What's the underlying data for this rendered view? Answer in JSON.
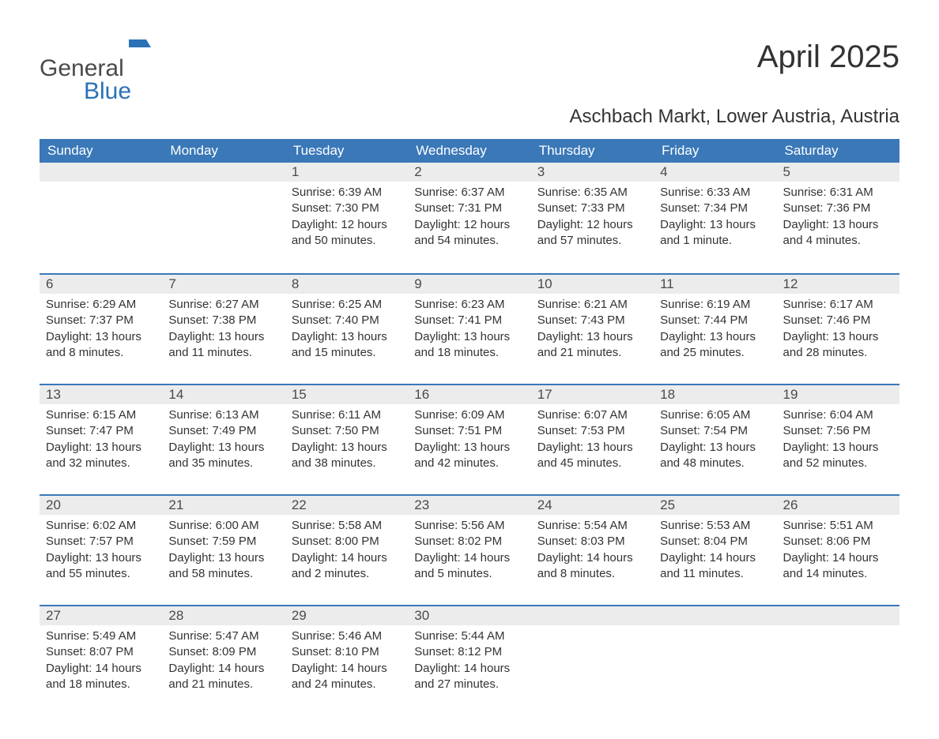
{
  "logo": {
    "general": "General",
    "blue": "Blue"
  },
  "title": "April 2025",
  "location": "Aschbach Markt, Lower Austria, Austria",
  "days_of_week": [
    "Sunday",
    "Monday",
    "Tuesday",
    "Wednesday",
    "Thursday",
    "Friday",
    "Saturday"
  ],
  "labels": {
    "sunrise": "Sunrise:",
    "sunset": "Sunset:",
    "daylight": "Daylight:"
  },
  "colors": {
    "header_bg": "#3a78b8",
    "header_text": "#ffffff",
    "daynum_bg": "#ececec",
    "week_border": "#3a78b8",
    "text": "#333333",
    "logo_gray": "#4a4a4a",
    "logo_blue": "#2b71b8",
    "background": "#ffffff"
  },
  "typography": {
    "title_fontsize": 40,
    "location_fontsize": 24,
    "dow_fontsize": 17,
    "daynum_fontsize": 17,
    "body_fontsize": 15,
    "logo_fontsize": 30
  },
  "weeks": [
    [
      {
        "num": "",
        "sunrise": "",
        "sunset": "",
        "daylight": ""
      },
      {
        "num": "",
        "sunrise": "",
        "sunset": "",
        "daylight": ""
      },
      {
        "num": "1",
        "sunrise": "6:39 AM",
        "sunset": "7:30 PM",
        "daylight": "12 hours and 50 minutes."
      },
      {
        "num": "2",
        "sunrise": "6:37 AM",
        "sunset": "7:31 PM",
        "daylight": "12 hours and 54 minutes."
      },
      {
        "num": "3",
        "sunrise": "6:35 AM",
        "sunset": "7:33 PM",
        "daylight": "12 hours and 57 minutes."
      },
      {
        "num": "4",
        "sunrise": "6:33 AM",
        "sunset": "7:34 PM",
        "daylight": "13 hours and 1 minute."
      },
      {
        "num": "5",
        "sunrise": "6:31 AM",
        "sunset": "7:36 PM",
        "daylight": "13 hours and 4 minutes."
      }
    ],
    [
      {
        "num": "6",
        "sunrise": "6:29 AM",
        "sunset": "7:37 PM",
        "daylight": "13 hours and 8 minutes."
      },
      {
        "num": "7",
        "sunrise": "6:27 AM",
        "sunset": "7:38 PM",
        "daylight": "13 hours and 11 minutes."
      },
      {
        "num": "8",
        "sunrise": "6:25 AM",
        "sunset": "7:40 PM",
        "daylight": "13 hours and 15 minutes."
      },
      {
        "num": "9",
        "sunrise": "6:23 AM",
        "sunset": "7:41 PM",
        "daylight": "13 hours and 18 minutes."
      },
      {
        "num": "10",
        "sunrise": "6:21 AM",
        "sunset": "7:43 PM",
        "daylight": "13 hours and 21 minutes."
      },
      {
        "num": "11",
        "sunrise": "6:19 AM",
        "sunset": "7:44 PM",
        "daylight": "13 hours and 25 minutes."
      },
      {
        "num": "12",
        "sunrise": "6:17 AM",
        "sunset": "7:46 PM",
        "daylight": "13 hours and 28 minutes."
      }
    ],
    [
      {
        "num": "13",
        "sunrise": "6:15 AM",
        "sunset": "7:47 PM",
        "daylight": "13 hours and 32 minutes."
      },
      {
        "num": "14",
        "sunrise": "6:13 AM",
        "sunset": "7:49 PM",
        "daylight": "13 hours and 35 minutes."
      },
      {
        "num": "15",
        "sunrise": "6:11 AM",
        "sunset": "7:50 PM",
        "daylight": "13 hours and 38 minutes."
      },
      {
        "num": "16",
        "sunrise": "6:09 AM",
        "sunset": "7:51 PM",
        "daylight": "13 hours and 42 minutes."
      },
      {
        "num": "17",
        "sunrise": "6:07 AM",
        "sunset": "7:53 PM",
        "daylight": "13 hours and 45 minutes."
      },
      {
        "num": "18",
        "sunrise": "6:05 AM",
        "sunset": "7:54 PM",
        "daylight": "13 hours and 48 minutes."
      },
      {
        "num": "19",
        "sunrise": "6:04 AM",
        "sunset": "7:56 PM",
        "daylight": "13 hours and 52 minutes."
      }
    ],
    [
      {
        "num": "20",
        "sunrise": "6:02 AM",
        "sunset": "7:57 PM",
        "daylight": "13 hours and 55 minutes."
      },
      {
        "num": "21",
        "sunrise": "6:00 AM",
        "sunset": "7:59 PM",
        "daylight": "13 hours and 58 minutes."
      },
      {
        "num": "22",
        "sunrise": "5:58 AM",
        "sunset": "8:00 PM",
        "daylight": "14 hours and 2 minutes."
      },
      {
        "num": "23",
        "sunrise": "5:56 AM",
        "sunset": "8:02 PM",
        "daylight": "14 hours and 5 minutes."
      },
      {
        "num": "24",
        "sunrise": "5:54 AM",
        "sunset": "8:03 PM",
        "daylight": "14 hours and 8 minutes."
      },
      {
        "num": "25",
        "sunrise": "5:53 AM",
        "sunset": "8:04 PM",
        "daylight": "14 hours and 11 minutes."
      },
      {
        "num": "26",
        "sunrise": "5:51 AM",
        "sunset": "8:06 PM",
        "daylight": "14 hours and 14 minutes."
      }
    ],
    [
      {
        "num": "27",
        "sunrise": "5:49 AM",
        "sunset": "8:07 PM",
        "daylight": "14 hours and 18 minutes."
      },
      {
        "num": "28",
        "sunrise": "5:47 AM",
        "sunset": "8:09 PM",
        "daylight": "14 hours and 21 minutes."
      },
      {
        "num": "29",
        "sunrise": "5:46 AM",
        "sunset": "8:10 PM",
        "daylight": "14 hours and 24 minutes."
      },
      {
        "num": "30",
        "sunrise": "5:44 AM",
        "sunset": "8:12 PM",
        "daylight": "14 hours and 27 minutes."
      },
      {
        "num": "",
        "sunrise": "",
        "sunset": "",
        "daylight": ""
      },
      {
        "num": "",
        "sunrise": "",
        "sunset": "",
        "daylight": ""
      },
      {
        "num": "",
        "sunrise": "",
        "sunset": "",
        "daylight": ""
      }
    ]
  ]
}
